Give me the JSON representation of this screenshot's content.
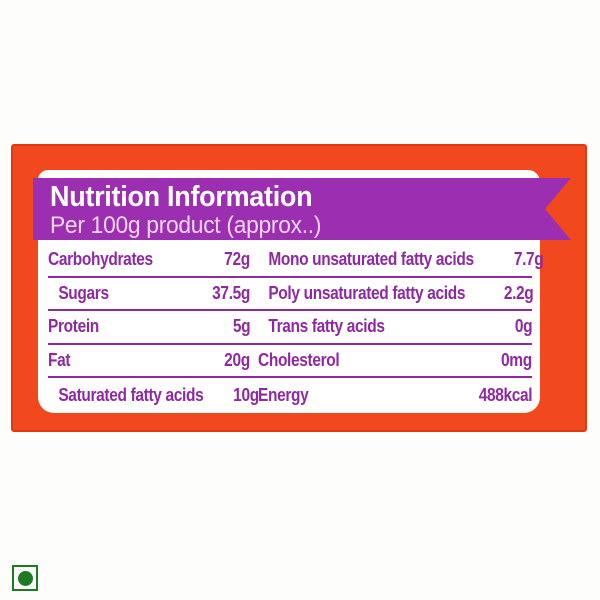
{
  "label": {
    "title": "Nutrition Information",
    "subtitle": "Per 100g product (approx..)"
  },
  "nutrition_table": {
    "rows": [
      {
        "left": {
          "label": "Carbohydrates",
          "value": "72g",
          "indent": false
        },
        "right": {
          "label": "Mono unsaturated fatty acids",
          "value": "7.7g",
          "indent": true
        }
      },
      {
        "left": {
          "label": "Sugars",
          "value": "37.5g",
          "indent": true
        },
        "right": {
          "label": "Poly unsaturated fatty acids",
          "value": "2.2g",
          "indent": true
        }
      },
      {
        "left": {
          "label": "Protein",
          "value": "5g",
          "indent": false
        },
        "right": {
          "label": "Trans fatty acids",
          "value": "0g",
          "indent": true
        }
      },
      {
        "left": {
          "label": "Fat",
          "value": "20g",
          "indent": false
        },
        "right": {
          "label": "Cholesterol",
          "value": "0mg",
          "indent": false
        }
      },
      {
        "left": {
          "label": "Saturated fatty acids",
          "value": "10g",
          "indent": true
        },
        "right": {
          "label": "Energy",
          "value": "488kcal",
          "indent": false
        }
      }
    ]
  },
  "veg_mark": {
    "meaning": "vegetarian"
  },
  "colors": {
    "page_background": "#fdfdfb",
    "panel_orange": "#f1491d",
    "panel_orange_border": "#de3a0e",
    "card_white": "#ffffff",
    "ribbon_purple": "#9c2fb1",
    "subtitle_pink": "#f0d7f3",
    "text_purple": "#8e2aa0",
    "veg_green": "#1e7c20"
  }
}
